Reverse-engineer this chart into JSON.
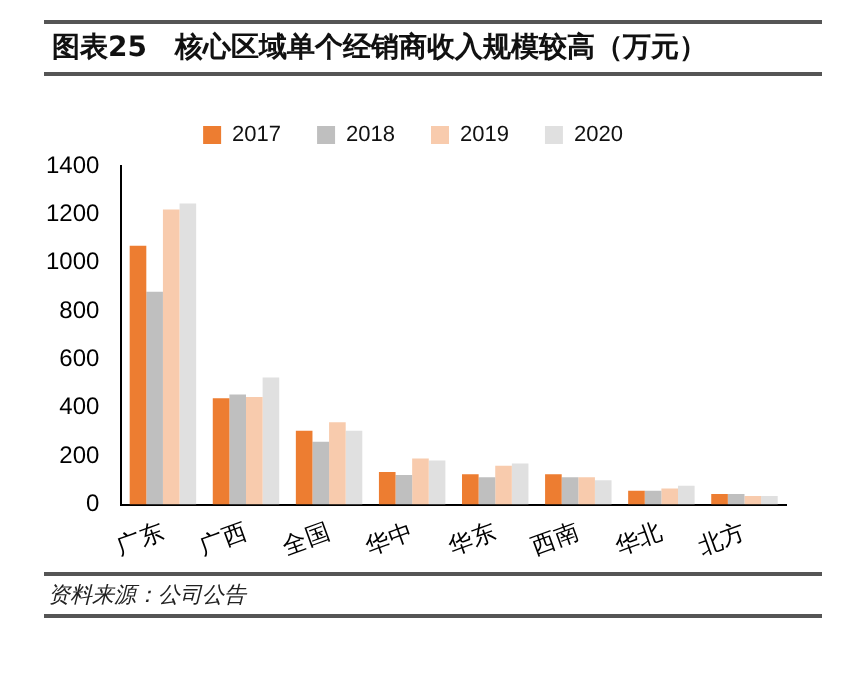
{
  "chart_data": {
    "type": "bar",
    "title": "图表25　核心区域单个经销商收入规模较高（万元）",
    "categories": [
      "广东",
      "广西",
      "全国",
      "华中",
      "华东",
      "西南",
      "华北",
      "北方"
    ],
    "series": [
      {
        "name": "2017",
        "color": "#ed7d31",
        "values": [
          1070,
          440,
          305,
          135,
          125,
          125,
          57,
          44
        ]
      },
      {
        "name": "2018",
        "color": "#bfbfbf",
        "values": [
          880,
          455,
          260,
          122,
          113,
          113,
          57,
          44
        ]
      },
      {
        "name": "2019",
        "color": "#f8cbad",
        "values": [
          1220,
          445,
          340,
          190,
          160,
          113,
          66,
          35
        ]
      },
      {
        "name": "2020",
        "color": "#e0e0e0",
        "values": [
          1245,
          525,
          305,
          182,
          170,
          100,
          78,
          35
        ]
      }
    ],
    "ylim": [
      0,
      1400
    ],
    "yticks": [
      0,
      200,
      400,
      600,
      800,
      1000,
      1200,
      1400
    ],
    "grid": false,
    "legend": "top",
    "annotations": [
      "资料来源：公司公告"
    ]
  }
}
